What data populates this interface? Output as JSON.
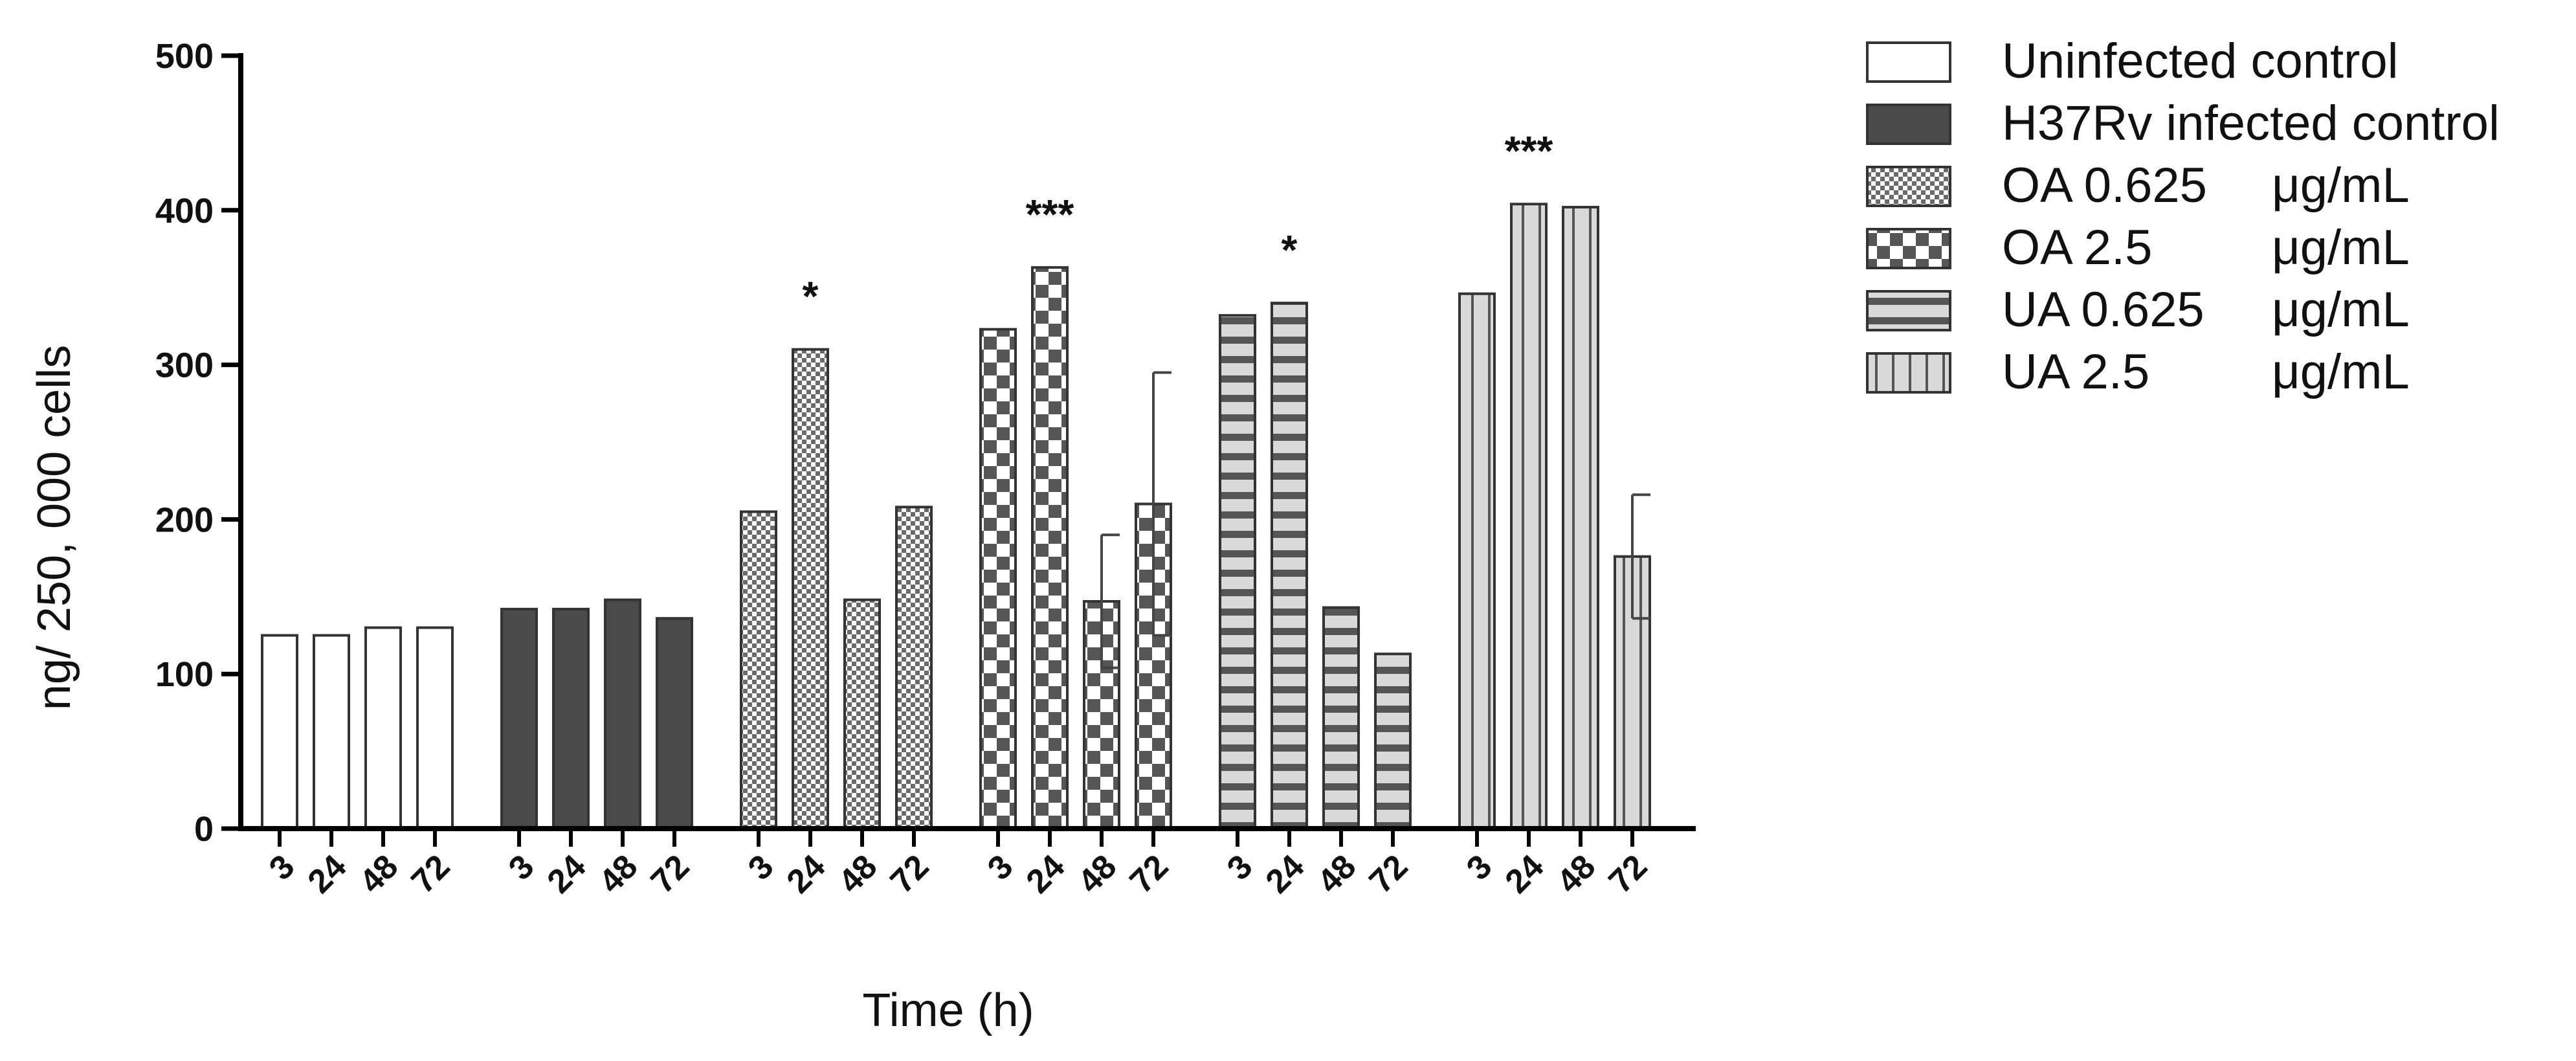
{
  "chart_data": {
    "type": "bar",
    "title": "",
    "xlabel": "Time (h)",
    "ylabel": "ng/ 250, 000 cells",
    "ylim": [
      0,
      500
    ],
    "yticks": [
      0,
      100,
      200,
      300,
      400,
      500
    ],
    "categories": [
      "3",
      "24",
      "48",
      "72"
    ],
    "series": [
      {
        "name": "Uninfected control",
        "unit": "",
        "pattern": "none",
        "values": [
          125,
          125,
          130,
          130
        ],
        "errors": [
          null,
          null,
          null,
          null
        ],
        "significance": [
          "",
          "",
          "",
          ""
        ]
      },
      {
        "name": "H37Rv infected control",
        "unit": "",
        "pattern": "solid",
        "values": [
          142,
          142,
          148,
          136
        ],
        "errors": [
          null,
          null,
          null,
          null
        ],
        "significance": [
          "",
          "",
          "",
          ""
        ]
      },
      {
        "name": "OA 0.625",
        "unit": "μg/mL",
        "pattern": "fine-checker",
        "values": [
          205,
          310,
          148,
          208
        ],
        "errors": [
          null,
          null,
          null,
          null
        ],
        "significance": [
          "",
          "*",
          "",
          ""
        ]
      },
      {
        "name": "OA 2.5",
        "unit": "μg/mL",
        "pattern": "checker",
        "values": [
          323,
          363,
          147,
          210
        ],
        "errors": [
          null,
          null,
          43,
          85
        ],
        "significance": [
          "",
          "***",
          "",
          ""
        ]
      },
      {
        "name": "UA 0.625",
        "unit": "μg/mL",
        "pattern": "horizontal",
        "values": [
          332,
          340,
          143,
          113
        ],
        "errors": [
          null,
          null,
          null,
          null
        ],
        "significance": [
          "",
          "*",
          "",
          ""
        ]
      },
      {
        "name": "UA 2.5",
        "unit": "μg/mL",
        "pattern": "vertical",
        "values": [
          346,
          404,
          402,
          176
        ],
        "errors": [
          null,
          null,
          null,
          40
        ],
        "significance": [
          "",
          "***",
          "",
          ""
        ]
      }
    ],
    "colors": {
      "dark_fill": "#4a4a4a",
      "light_fill": "#d9d9d9",
      "axis": "#000000",
      "outline": "#333333"
    }
  }
}
